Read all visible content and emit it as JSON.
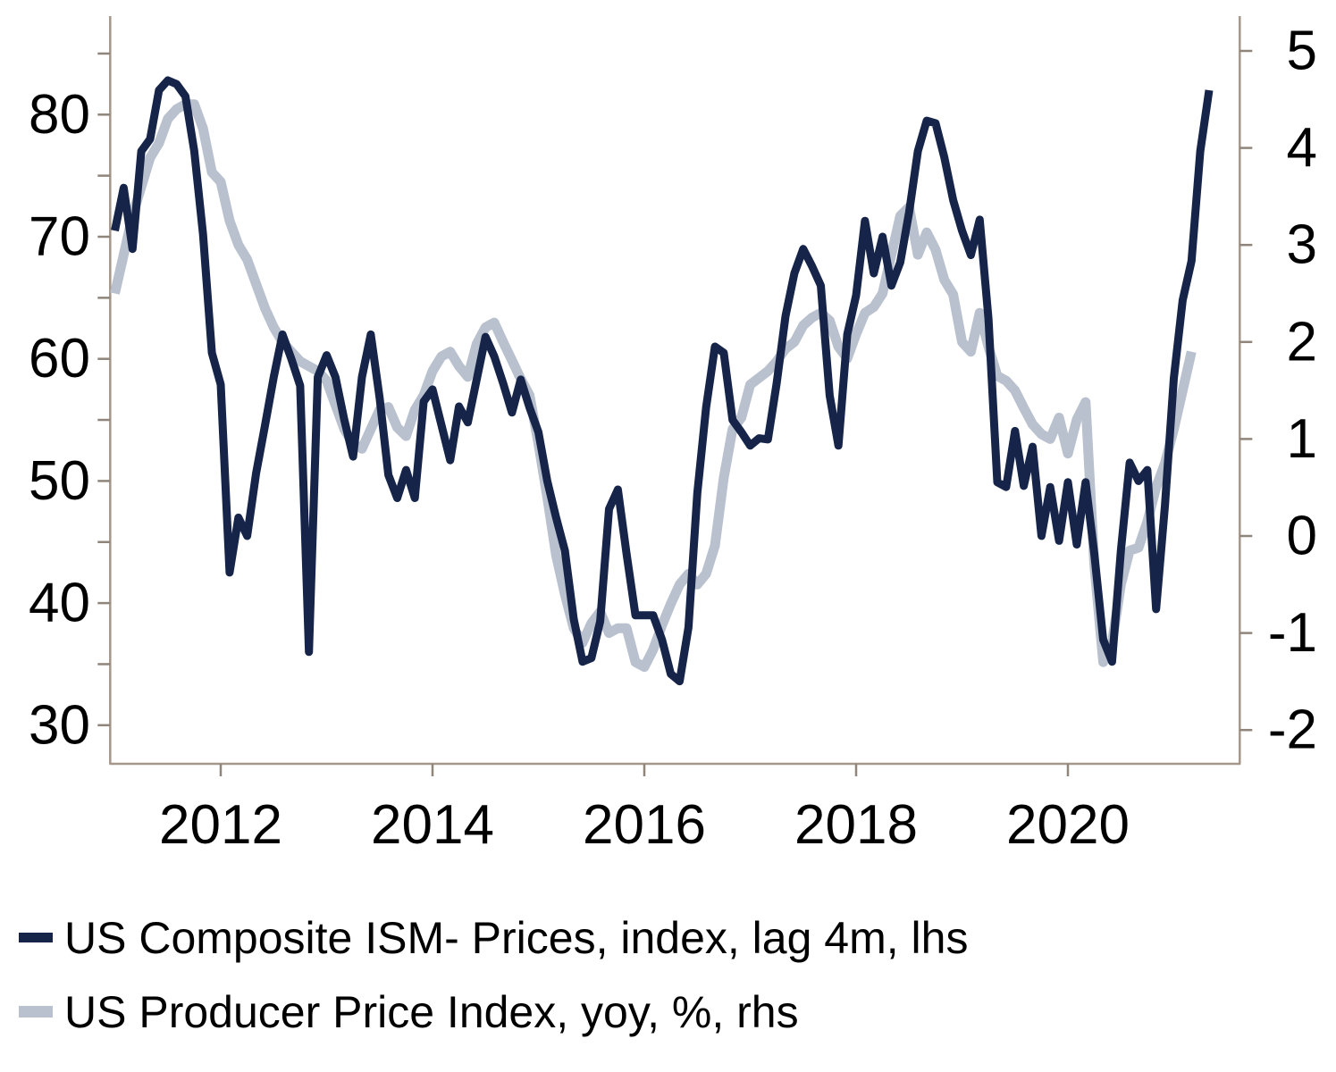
{
  "chart_data": {
    "type": "line",
    "title": "",
    "xlabel": "",
    "ylabel_left": "",
    "ylabel_right": "",
    "grid": false,
    "legend_position": "bottom-left",
    "x_axis": {
      "tick_labels": [
        "2012",
        "2014",
        "2016",
        "2018",
        "2020"
      ],
      "tick_years": [
        2012,
        2014,
        2016,
        2018,
        2020
      ],
      "range": [
        2010.95,
        2021.62
      ]
    },
    "y_axis_left": {
      "tick_labels": [
        "80",
        "70",
        "60",
        "50",
        "40",
        "30"
      ],
      "labeled_ticks": [
        80,
        70,
        60,
        50,
        40,
        30
      ],
      "minor_ticks": [
        85,
        75,
        65,
        55,
        45,
        35
      ],
      "range": [
        27,
        88.5
      ]
    },
    "y_axis_right": {
      "tick_labels": [
        "5",
        "4",
        "3",
        "2",
        "1",
        "0",
        "-1",
        "-2"
      ],
      "labeled_ticks": [
        5,
        4,
        3,
        2,
        1,
        0,
        -1,
        -2
      ],
      "range": [
        -2.35,
        5.35
      ]
    },
    "series": [
      {
        "name": "US Producer Price Index, yoy, %, rhs",
        "axis": "right",
        "color": "#b9c0ce",
        "line_width": 11,
        "start_year": 2011,
        "start_month": 1,
        "frequency": "monthly",
        "values": [
          2.5,
          2.9,
          3.3,
          3.6,
          3.9,
          4.05,
          4.3,
          4.4,
          4.45,
          4.45,
          4.2,
          3.75,
          3.65,
          3.25,
          3.0,
          2.85,
          2.6,
          2.35,
          2.15,
          2.0,
          1.9,
          1.8,
          1.75,
          1.7,
          1.6,
          1.35,
          1.1,
          0.95,
          0.9,
          1.1,
          1.3,
          1.33,
          1.12,
          1.03,
          1.3,
          1.45,
          1.7,
          1.85,
          1.9,
          1.75,
          1.64,
          1.98,
          2.15,
          2.2,
          2.0,
          1.81,
          1.62,
          1.45,
          0.95,
          0.4,
          -0.2,
          -0.6,
          -0.95,
          -1.1,
          -0.9,
          -0.78,
          -1.0,
          -0.95,
          -0.95,
          -1.3,
          -1.35,
          -1.17,
          -0.92,
          -0.7,
          -0.5,
          -0.39,
          -0.5,
          -0.39,
          -0.1,
          0.6,
          1.1,
          1.22,
          1.56,
          1.63,
          1.7,
          1.8,
          1.93,
          2.0,
          2.17,
          2.25,
          2.3,
          2.22,
          1.95,
          1.83,
          2.08,
          2.3,
          2.36,
          2.5,
          2.9,
          3.3,
          3.39,
          2.9,
          3.13,
          2.95,
          2.64,
          2.49,
          2.0,
          1.9,
          2.3,
          1.95,
          1.65,
          1.6,
          1.5,
          1.32,
          1.15,
          1.05,
          1.0,
          1.22,
          0.85,
          1.2,
          1.38,
          -0.3,
          -1.3,
          -1.1,
          -0.5,
          -0.15,
          -0.12,
          0.15,
          0.5,
          0.75,
          1.1,
          1.5,
          1.9
        ]
      },
      {
        "name": "US Composite ISM- Prices, index, lag 4m, lhs",
        "axis": "left",
        "color": "#152448",
        "line_width": 9,
        "start_year": 2011,
        "start_month": 1,
        "frequency": "monthly",
        "values": [
          70.5,
          74.0,
          69.0,
          77.0,
          78.0,
          82.0,
          82.8,
          82.5,
          81.5,
          77.0,
          70.2,
          60.5,
          57.9,
          42.5,
          47.0,
          45.5,
          50.6,
          54.5,
          58.5,
          62.0,
          60.0,
          57.8,
          36.0,
          58.5,
          60.3,
          58.5,
          55.0,
          52.0,
          58.5,
          62.0,
          56.8,
          50.5,
          48.6,
          50.9,
          48.6,
          56.5,
          57.5,
          54.6,
          51.7,
          56.1,
          54.8,
          58.3,
          61.8,
          60.2,
          58.0,
          55.6,
          58.3,
          56.0,
          54.0,
          50.0,
          47.0,
          44.3,
          38.7,
          35.2,
          35.5,
          38.5,
          47.7,
          49.3,
          44.0,
          39.0,
          39.0,
          39.0,
          37.0,
          34.2,
          33.6,
          38.0,
          49.0,
          56.0,
          61.0,
          60.5,
          55.0,
          54.0,
          52.9,
          53.5,
          53.4,
          58.0,
          63.5,
          67.0,
          69.0,
          67.6,
          66.0,
          57.0,
          52.9,
          62.0,
          65.2,
          71.3,
          67.0,
          70.0,
          66.0,
          67.9,
          72.0,
          77.0,
          79.5,
          79.3,
          76.5,
          73.0,
          70.5,
          68.5,
          71.4,
          63.3,
          49.9,
          49.5,
          54.1,
          49.6,
          52.8,
          45.5,
          49.5,
          45.1,
          49.9,
          44.8,
          49.9,
          44.0,
          37.0,
          35.2,
          44.3,
          51.5,
          50.0,
          50.9,
          39.5,
          48.0,
          58.4,
          64.8,
          68.0,
          77.0,
          82.0
        ]
      }
    ]
  },
  "legend": {
    "items": [
      {
        "label": "US Composite ISM- Prices, index, lag 4m, lhs",
        "color": "#152448",
        "marker_height": 11
      },
      {
        "label": "US Producer Price Index, yoy, %, rhs",
        "color": "#b9c0ce",
        "marker_height": 13
      }
    ]
  },
  "colors": {
    "background": "#ffffff",
    "axis_line": "#a59789",
    "tick_mark": "#90857a",
    "text": "#000000",
    "ism_navy": "#152448",
    "ppi_gray": "#b9c0ce"
  }
}
